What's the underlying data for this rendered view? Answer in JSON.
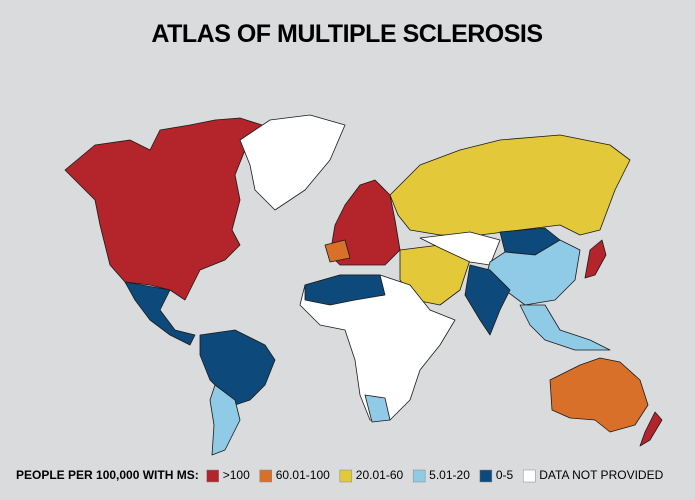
{
  "title": "ATLAS OF MULTIPLE SCLEROSIS",
  "legend": {
    "label": "PEOPLE PER 100,000 WITH MS:",
    "items": [
      {
        "label": ">100",
        "color": "#b3242b"
      },
      {
        "label": "60.01-100",
        "color": "#d9702a"
      },
      {
        "label": "20.01-60",
        "color": "#e3c839"
      },
      {
        "label": "5.01-20",
        "color": "#8fcae7"
      },
      {
        "label": "0-5",
        "color": "#0d4a7b"
      },
      {
        "label": "DATA NOT PROVIDED",
        "color": "#ffffff"
      }
    ]
  }
}
